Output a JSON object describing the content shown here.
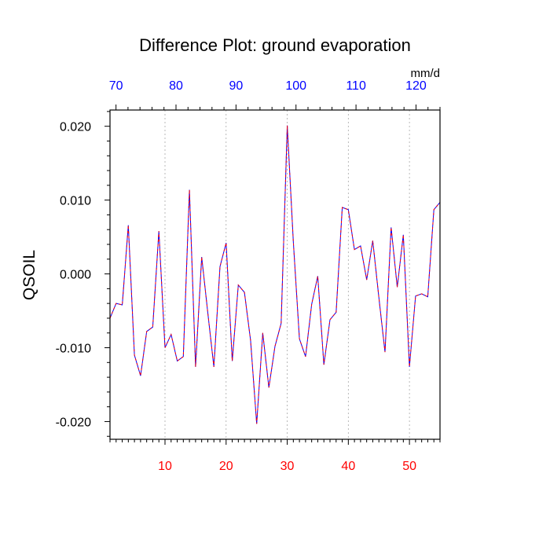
{
  "chart_data": {
    "type": "line",
    "title": "Difference Plot: ground evaporation",
    "ylabel": "QSOIL",
    "xlabel": "",
    "units_label": "mm/d",
    "xlim": [
      1,
      55
    ],
    "ylim": [
      -0.0224,
      0.0222
    ],
    "bottom_axis": {
      "ticks": [
        10,
        20,
        30,
        40,
        50
      ],
      "tick_labels": [
        "10",
        "20",
        "30",
        "40",
        "50"
      ],
      "color": "#ff0000"
    },
    "top_axis": {
      "ticks": [
        70,
        80,
        90,
        100,
        110,
        120
      ],
      "tick_labels": [
        "70",
        "80",
        "90",
        "100",
        "110",
        "120"
      ],
      "range": [
        69,
        124
      ],
      "color": "#0000ff"
    },
    "y_ticks": [
      -0.02,
      -0.01,
      0.0,
      0.01,
      0.02
    ],
    "y_tick_labels": [
      "-0.020",
      "-0.010",
      "0.000",
      "0.010",
      "0.020"
    ],
    "grid": "vertical dotted at major x ticks",
    "series": [
      {
        "name": "blue",
        "color": "#0000ff",
        "x": [
          1,
          2,
          3,
          4,
          5,
          6,
          7,
          8,
          9,
          10,
          11,
          12,
          13,
          14,
          15,
          16,
          17,
          18,
          19,
          20,
          21,
          22,
          23,
          24,
          25,
          26,
          27,
          28,
          29,
          30,
          31,
          32,
          33,
          34,
          35,
          36,
          37,
          38,
          39,
          40,
          41,
          42,
          43,
          44,
          45,
          46,
          47,
          48,
          49,
          50,
          51,
          52,
          53,
          54,
          55
        ],
        "values": [
          -0.006,
          -0.004,
          -0.0042,
          0.0066,
          -0.011,
          -0.0138,
          -0.0078,
          -0.0072,
          0.0058,
          -0.01,
          -0.0082,
          -0.0118,
          -0.0112,
          0.0114,
          -0.0126,
          0.0023,
          -0.0052,
          -0.0126,
          0.001,
          0.0042,
          -0.0118,
          -0.0015,
          -0.0025,
          -0.009,
          -0.0203,
          -0.008,
          -0.0154,
          -0.0098,
          -0.0067,
          0.0201,
          0.0044,
          -0.0088,
          -0.0112,
          -0.0041,
          -0.0003,
          -0.0123,
          -0.0062,
          -0.0052,
          0.009,
          0.0087,
          0.0033,
          0.0038,
          -0.0008,
          0.0045,
          -0.0032,
          -0.0106,
          0.0063,
          -0.0018,
          0.0053,
          -0.0126,
          -0.003,
          -0.0027,
          -0.0031,
          0.0087,
          0.0097
        ]
      },
      {
        "name": "red",
        "color": "#ff0000",
        "dashed": true,
        "x": [
          1,
          2,
          3,
          4,
          5,
          6,
          7,
          8,
          9,
          10,
          11,
          12,
          13,
          14,
          15,
          16,
          17,
          18,
          19,
          20,
          21,
          22,
          23,
          24,
          25,
          26,
          27,
          28,
          29,
          30,
          31,
          32,
          33,
          34,
          35,
          36,
          37,
          38,
          39,
          40,
          41,
          42,
          43,
          44,
          45,
          46,
          47,
          48,
          49,
          50,
          51,
          52,
          53,
          54,
          55
        ],
        "values": [
          -0.006,
          -0.004,
          -0.0042,
          0.0066,
          -0.011,
          -0.0138,
          -0.0078,
          -0.0072,
          0.0058,
          -0.01,
          -0.0082,
          -0.0118,
          -0.0112,
          0.0114,
          -0.0126,
          0.0023,
          -0.0052,
          -0.0126,
          0.001,
          0.0042,
          -0.0118,
          -0.0015,
          -0.0025,
          -0.009,
          -0.0203,
          -0.008,
          -0.0154,
          -0.0098,
          -0.0067,
          0.0201,
          0.0044,
          -0.0088,
          -0.0112,
          -0.0041,
          -0.0003,
          -0.0123,
          -0.0062,
          -0.0052,
          0.009,
          0.0087,
          0.0033,
          0.0038,
          -0.0008,
          0.0045,
          -0.0032,
          -0.0106,
          0.0063,
          -0.0018,
          0.0053,
          -0.0126,
          -0.003,
          -0.0027,
          -0.0031,
          0.0087,
          0.0097
        ]
      }
    ]
  }
}
